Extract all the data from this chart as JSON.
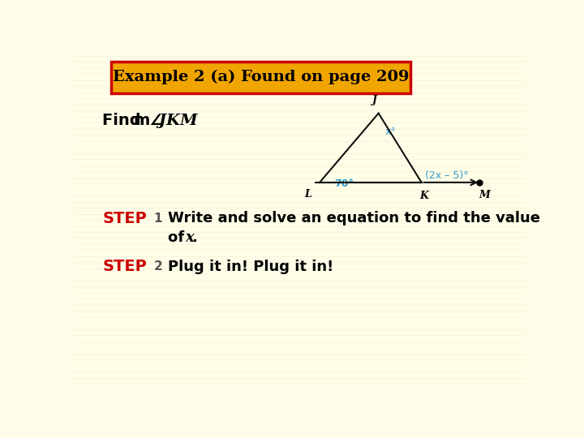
{
  "title": "Example 2 (a) Found on page 209",
  "title_bg": "#F0A500",
  "title_border": "#CC0000",
  "bg_color": "#FEFEE8",
  "step_color": "#CC0000",
  "step_num_color": "#555555",
  "triangle": {
    "J": [
      0.675,
      0.82
    ],
    "L": [
      0.545,
      0.615
    ],
    "K": [
      0.77,
      0.615
    ],
    "M": [
      0.875,
      0.615
    ],
    "label_J": "J",
    "label_L": "L",
    "label_K": "K",
    "label_M": "M",
    "angle_J_text": "x°",
    "angle_L_text": "70°",
    "angle_K_text": "(2x – 5)°",
    "line_color": "#111111",
    "angle_color": "#3399CC"
  }
}
